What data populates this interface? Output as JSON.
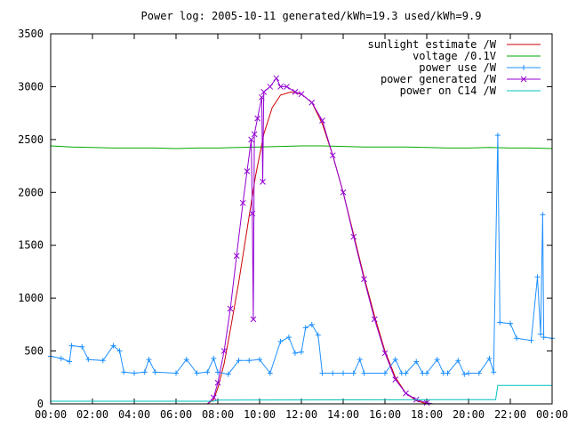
{
  "chart_data": {
    "type": "line",
    "title": "Power log: 2005-10-11 generated/kWh=19.3 used/kWh=9.9",
    "xlabel": "",
    "ylabel": "",
    "xlim": [
      0,
      24
    ],
    "ylim": [
      0,
      3500
    ],
    "x_ticks": [
      "00:00",
      "02:00",
      "04:00",
      "06:00",
      "08:00",
      "10:00",
      "12:00",
      "14:00",
      "16:00",
      "18:00",
      "20:00",
      "22:00",
      "00:00"
    ],
    "y_ticks": [
      0,
      500,
      1000,
      1500,
      2000,
      2500,
      3000,
      3500
    ],
    "grid": false,
    "legend": "top-right",
    "series": [
      {
        "name": "sunlight estimate /W",
        "color": "#cc0000",
        "marker": "none",
        "points": [
          [
            7.5,
            0
          ],
          [
            7.8,
            40
          ],
          [
            8.0,
            150
          ],
          [
            8.3,
            380
          ],
          [
            8.6,
            700
          ],
          [
            9.0,
            1150
          ],
          [
            9.4,
            1650
          ],
          [
            9.8,
            2150
          ],
          [
            10.2,
            2550
          ],
          [
            10.6,
            2800
          ],
          [
            11.0,
            2920
          ],
          [
            11.5,
            2950
          ],
          [
            12.0,
            2930
          ],
          [
            12.5,
            2850
          ],
          [
            13.0,
            2650
          ],
          [
            13.5,
            2350
          ],
          [
            14.0,
            2000
          ],
          [
            14.5,
            1600
          ],
          [
            15.0,
            1200
          ],
          [
            15.5,
            830
          ],
          [
            16.0,
            500
          ],
          [
            16.5,
            250
          ],
          [
            17.0,
            100
          ],
          [
            17.5,
            30
          ],
          [
            18.0,
            0
          ],
          [
            24.0,
            0
          ]
        ]
      },
      {
        "name": "voltage /0.1V",
        "color": "#00aa00",
        "marker": "none",
        "points": [
          [
            0,
            2440
          ],
          [
            0.5,
            2435
          ],
          [
            1,
            2430
          ],
          [
            2,
            2425
          ],
          [
            3,
            2420
          ],
          [
            4,
            2420
          ],
          [
            5,
            2420
          ],
          [
            6,
            2415
          ],
          [
            7,
            2420
          ],
          [
            8,
            2420
          ],
          [
            9,
            2425
          ],
          [
            10,
            2430
          ],
          [
            11,
            2435
          ],
          [
            12,
            2440
          ],
          [
            13,
            2440
          ],
          [
            14,
            2435
          ],
          [
            15,
            2430
          ],
          [
            16,
            2430
          ],
          [
            17,
            2430
          ],
          [
            18,
            2425
          ],
          [
            19,
            2420
          ],
          [
            20,
            2420
          ],
          [
            21,
            2425
          ],
          [
            22,
            2420
          ],
          [
            23,
            2420
          ],
          [
            24,
            2415
          ]
        ]
      },
      {
        "name": "power use /W",
        "color": "#1e90ff",
        "marker": "plus",
        "points": [
          [
            0,
            450
          ],
          [
            0.5,
            430
          ],
          [
            0.9,
            400
          ],
          [
            1.0,
            550
          ],
          [
            1.5,
            540
          ],
          [
            1.8,
            420
          ],
          [
            2.5,
            410
          ],
          [
            3.0,
            550
          ],
          [
            3.3,
            500
          ],
          [
            3.5,
            300
          ],
          [
            4.0,
            290
          ],
          [
            4.5,
            300
          ],
          [
            4.7,
            420
          ],
          [
            5.0,
            300
          ],
          [
            6.0,
            290
          ],
          [
            6.5,
            420
          ],
          [
            7.0,
            290
          ],
          [
            7.5,
            300
          ],
          [
            7.8,
            430
          ],
          [
            8.0,
            300
          ],
          [
            8.5,
            280
          ],
          [
            9.0,
            410
          ],
          [
            9.5,
            410
          ],
          [
            10.0,
            420
          ],
          [
            10.5,
            290
          ],
          [
            11.0,
            590
          ],
          [
            11.4,
            630
          ],
          [
            11.7,
            480
          ],
          [
            12.0,
            490
          ],
          [
            12.2,
            720
          ],
          [
            12.5,
            750
          ],
          [
            12.8,
            650
          ],
          [
            13.0,
            290
          ],
          [
            13.5,
            290
          ],
          [
            14.0,
            290
          ],
          [
            14.5,
            290
          ],
          [
            14.8,
            420
          ],
          [
            15.0,
            290
          ],
          [
            16.0,
            290
          ],
          [
            16.5,
            420
          ],
          [
            16.8,
            290
          ],
          [
            17.0,
            290
          ],
          [
            17.5,
            400
          ],
          [
            17.8,
            290
          ],
          [
            18.0,
            290
          ],
          [
            18.5,
            420
          ],
          [
            18.8,
            290
          ],
          [
            19.0,
            290
          ],
          [
            19.5,
            410
          ],
          [
            19.8,
            280
          ],
          [
            20.0,
            290
          ],
          [
            20.5,
            290
          ],
          [
            21.0,
            430
          ],
          [
            21.2,
            300
          ],
          [
            21.4,
            2540
          ],
          [
            21.5,
            770
          ],
          [
            22.0,
            760
          ],
          [
            22.3,
            620
          ],
          [
            23.0,
            600
          ],
          [
            23.3,
            1200
          ],
          [
            23.45,
            660
          ],
          [
            23.55,
            1790
          ],
          [
            23.6,
            630
          ],
          [
            24.0,
            620
          ]
        ]
      },
      {
        "name": "power generated /W",
        "color": "#9400d3",
        "marker": "cross",
        "points": [
          [
            0,
            0
          ],
          [
            7.5,
            0
          ],
          [
            7.8,
            60
          ],
          [
            8.0,
            200
          ],
          [
            8.3,
            500
          ],
          [
            8.6,
            900
          ],
          [
            8.9,
            1400
          ],
          [
            9.2,
            1900
          ],
          [
            9.4,
            2200
          ],
          [
            9.6,
            2500
          ],
          [
            9.65,
            1800
          ],
          [
            9.7,
            800
          ],
          [
            9.75,
            2550
          ],
          [
            9.9,
            2700
          ],
          [
            10.1,
            2900
          ],
          [
            10.15,
            2100
          ],
          [
            10.2,
            2950
          ],
          [
            10.5,
            3000
          ],
          [
            10.8,
            3080
          ],
          [
            11.0,
            3000
          ],
          [
            11.3,
            3000
          ],
          [
            11.7,
            2950
          ],
          [
            12.0,
            2930
          ],
          [
            12.5,
            2850
          ],
          [
            13.0,
            2680
          ],
          [
            13.5,
            2350
          ],
          [
            14.0,
            2000
          ],
          [
            14.5,
            1580
          ],
          [
            15.0,
            1180
          ],
          [
            15.5,
            800
          ],
          [
            16.0,
            480
          ],
          [
            16.5,
            230
          ],
          [
            17.0,
            100
          ],
          [
            17.5,
            40
          ],
          [
            18.0,
            10
          ],
          [
            18.3,
            0
          ],
          [
            24.0,
            0
          ]
        ]
      },
      {
        "name": "power on C14 /W",
        "color": "#00c0c0",
        "marker": "none",
        "points": [
          [
            0,
            25
          ],
          [
            7.8,
            25
          ],
          [
            8.0,
            35
          ],
          [
            21.0,
            40
          ],
          [
            21.3,
            40
          ],
          [
            21.4,
            175
          ],
          [
            24.0,
            175
          ]
        ]
      }
    ]
  }
}
